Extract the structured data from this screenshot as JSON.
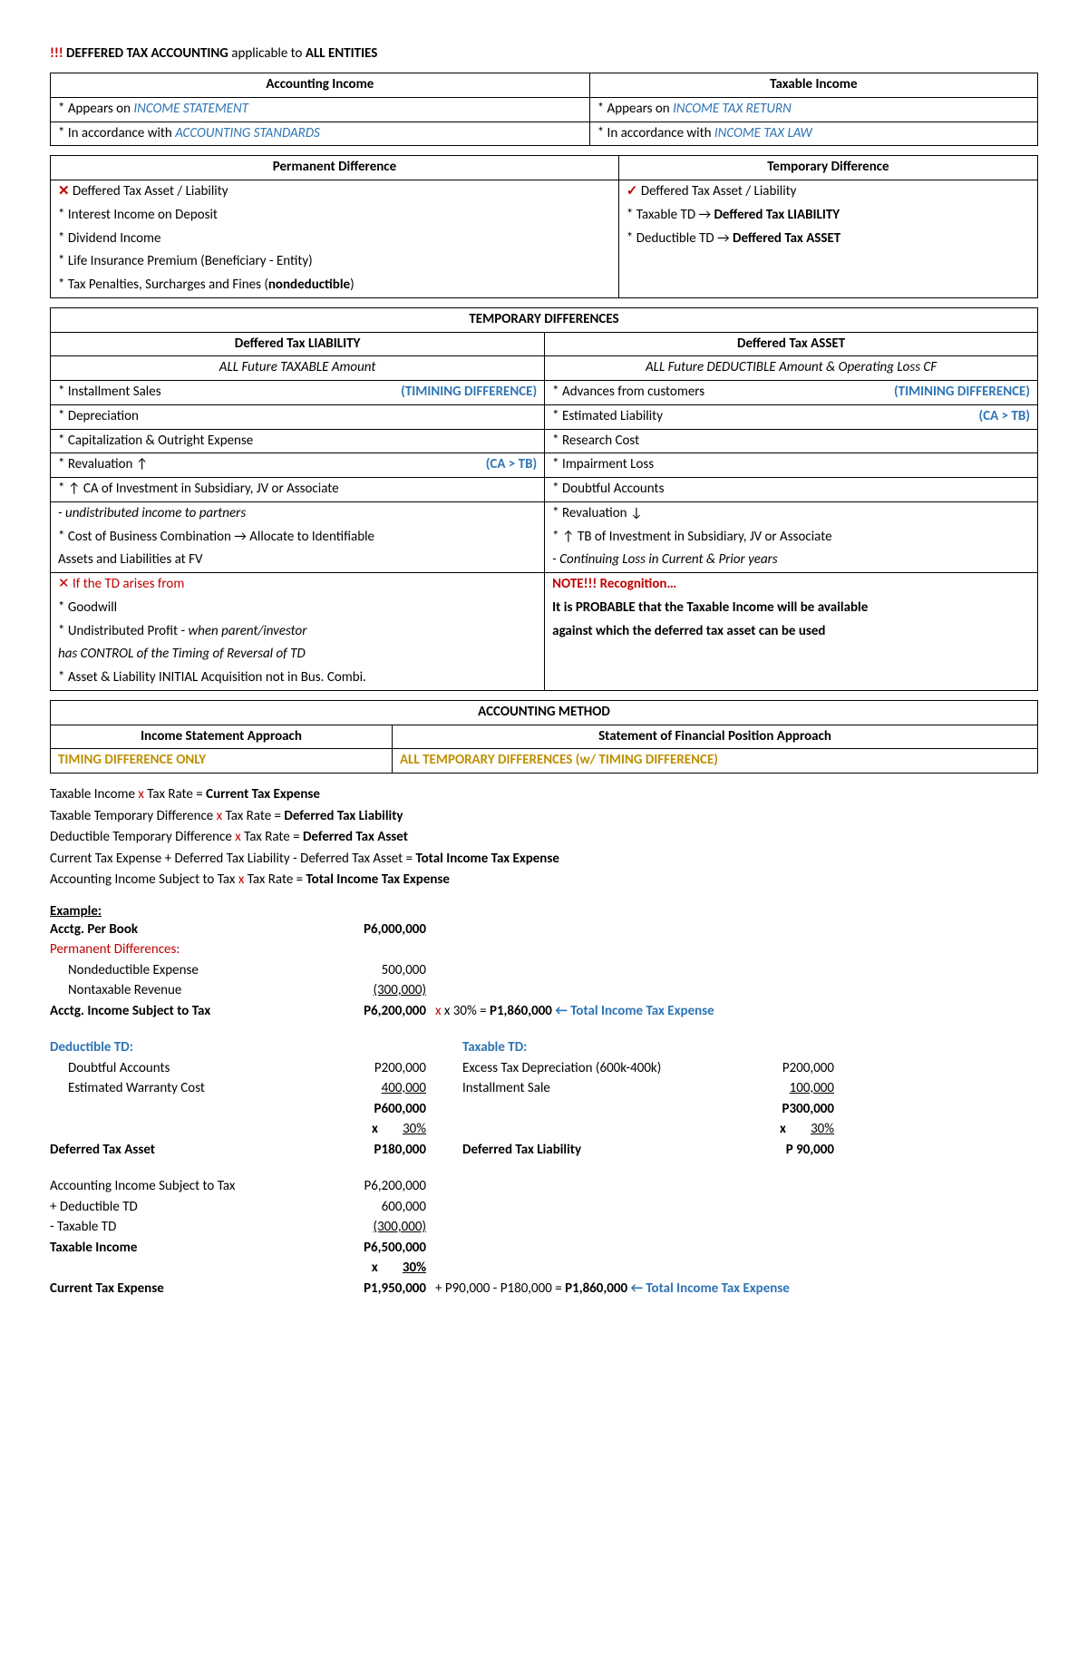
{
  "title": {
    "prefix": "!!! ",
    "main": "DEFFERED TAX ACCOUNTING",
    "mid": " applicable to ",
    "suffix": "ALL ENTITIES"
  },
  "table1": {
    "h1": "Accounting Income",
    "h2": "Taxable Income",
    "r1c1a": "* Appears on ",
    "r1c1b": "INCOME STATEMENT",
    "r1c2a": "* Appears on ",
    "r1c2b": "INCOME TAX RETURN",
    "r2c1a": "* In accordance with ",
    "r2c1b": "ACCOUNTING STANDARDS",
    "r2c2a": "* In accordance with ",
    "r2c2b": "INCOME TAX LAW"
  },
  "table2": {
    "h1": "Permanent Difference",
    "h2": "Temporary Difference",
    "l1x": "✕",
    "l1": " Deffered Tax Asset / Liability",
    "l2": "* Interest Income on Deposit",
    "l3": "* Dividend Income",
    "l4": "* Life Insurance Premium (Beneficiary - Entity)",
    "l5a": "* Tax Penalties, Surcharges and Fines (",
    "l5b": "nondeductible",
    "l5c": ")",
    "r1c": "✓",
    "r1": " Deffered Tax Asset / Liability",
    "r2a": "* Taxable TD → ",
    "r2b": "Deffered Tax LIABILITY",
    "r3a": "* Deductible TD → ",
    "r3b": "Deffered Tax ASSET"
  },
  "table3": {
    "banner": "TEMPORARY DIFFERENCES",
    "hL": "Deffered Tax LIABILITY",
    "hR": "Deffered Tax ASSET",
    "subL": "ALL Future TAXABLE Amount",
    "subR": "ALL Future DEDUCTIBLE Amount & Operating Loss CF",
    "L1a": "* Installment Sales",
    "L1b": "(TIMINING DIFFERENCE)",
    "L2": "* Depreciation",
    "L3": "* Capitalization & Outright Expense",
    "L4a": "* Revaluation ↑",
    "L4b": "(CA > TB)",
    "L5": "* ↑ CA of Investment in Subsidiary, JV or Associate",
    "L5s": "   - undistributed income to partners",
    "L6": "* Cost of Business Combination → Allocate to Identifiable",
    "L6s": "   Assets and Liabilities at FV",
    "L7": "✕ If the TD arises from",
    "L8": "* Goodwill",
    "L9a": "* Undistributed Profit - ",
    "L9b": "when parent/investor",
    "L9s": "   has CONTROL of the Timing of Reversal of TD",
    "L10": "* Asset & Liability INITIAL Acquisition not in Bus. Combi.",
    "R1a": "* Advances from customers",
    "R1b": "(TIMINING DIFFERENCE)",
    "R2a": "* Estimated Liability",
    "R2b": "(CA > TB)",
    "R3": "* Research Cost",
    "R4": "* Impairment Loss",
    "R5": "* Doubtful Accounts",
    "R6": "* Revaluation ↓",
    "R7": "* ↑ TB of Investment in Subsidiary, JV or Associate",
    "R7s": "   - Continuing Loss in Current & Prior years",
    "R8": "NOTE!!! Recognition…",
    "R9": "It is PROBABLE that the Taxable Income will be available",
    "R10": "against which the deferred tax asset can be used"
  },
  "table4": {
    "banner": "ACCOUNTING METHOD",
    "hL": "Income Statement Approach",
    "hR": "Statement of Financial Position Approach",
    "vL": "TIMING DIFFERENCE ONLY",
    "vR": "ALL TEMPORARY DIFFERENCES (w/ TIMING DIFFERENCE)"
  },
  "formulas": {
    "f1a": "Taxable Income ",
    "f1x": "x",
    "f1b": " Tax Rate = ",
    "f1c": "Current Tax Expense",
    "f2a": "Taxable Temporary Difference ",
    "f2b": " Tax Rate = ",
    "f2c": "Deferred Tax Liability",
    "f3a": "Deductible Temporary Difference ",
    "f3b": " Tax Rate = ",
    "f3c": "Deferred Tax Asset",
    "f4a": "Current Tax Expense + Deferred Tax Liability - Deferred Tax Asset = ",
    "f4b": "Total Income Tax Expense",
    "f5a": "Accounting Income Subject to Tax ",
    "f5b": " Tax Rate =  ",
    "f5c": "Total Income Tax Expense"
  },
  "ex": {
    "hdr": "Example:",
    "book_lbl": "Acctg. Per Book",
    "book_val": "P6,000,000",
    "perm_hdr": "Permanent Differences:",
    "nde_lbl": "Nondeductible Expense",
    "nde_val": "500,000",
    "ntr_lbl": "Nontaxable Revenue",
    "ntr_val": "(300,000)",
    "ais_lbl": "Acctg. Income Subject to Tax",
    "ais_val": "P6,200,000",
    "ais_mid": " x 30% =  ",
    "ais_res": "P1,860,000",
    "ais_arrow": " ← ",
    "ais_note": "Total Income Tax Expense",
    "ded_hdr": "Deductible TD:",
    "tax_hdr": "Taxable TD:",
    "da_lbl": "Doubtful Accounts",
    "da_val": "P200,000",
    "etd_lbl": "Excess Tax Depreciation (600k-400k)",
    "etd_val": "P200,000",
    "ewc_lbl": "Estimated Warranty Cost",
    "ewc_val": "400,000",
    "is_lbl": "Installment Sale",
    "is_val": "100,000",
    "ded_tot": "P600,000",
    "tax_tot": "P300,000",
    "rate_x": "x",
    "rate": "30%",
    "dta_lbl": "Deferred Tax Asset",
    "dta_val": "P180,000",
    "dtl_lbl": "Deferred Tax Liability",
    "dtl_val": "P  90,000",
    "rec1_lbl": "Accounting Income Subject to Tax",
    "rec1_val": "P6,200,000",
    "rec2_lbl": "+ Deductible TD",
    "rec2_val": "600,000",
    "rec3_lbl": "- Taxable TD",
    "rec3_val": "(300,000)",
    "ti_lbl": "Taxable Income",
    "ti_val": "P6,500,000",
    "cte_lbl": "Current Tax Expense",
    "cte_val": "P1,950,000",
    "cte_mid": " + P90,000 - P180,000 = ",
    "cte_res": "P1,860,000",
    "cte_arrow": " ← ",
    "cte_note": "Total Income Tax Expense"
  }
}
